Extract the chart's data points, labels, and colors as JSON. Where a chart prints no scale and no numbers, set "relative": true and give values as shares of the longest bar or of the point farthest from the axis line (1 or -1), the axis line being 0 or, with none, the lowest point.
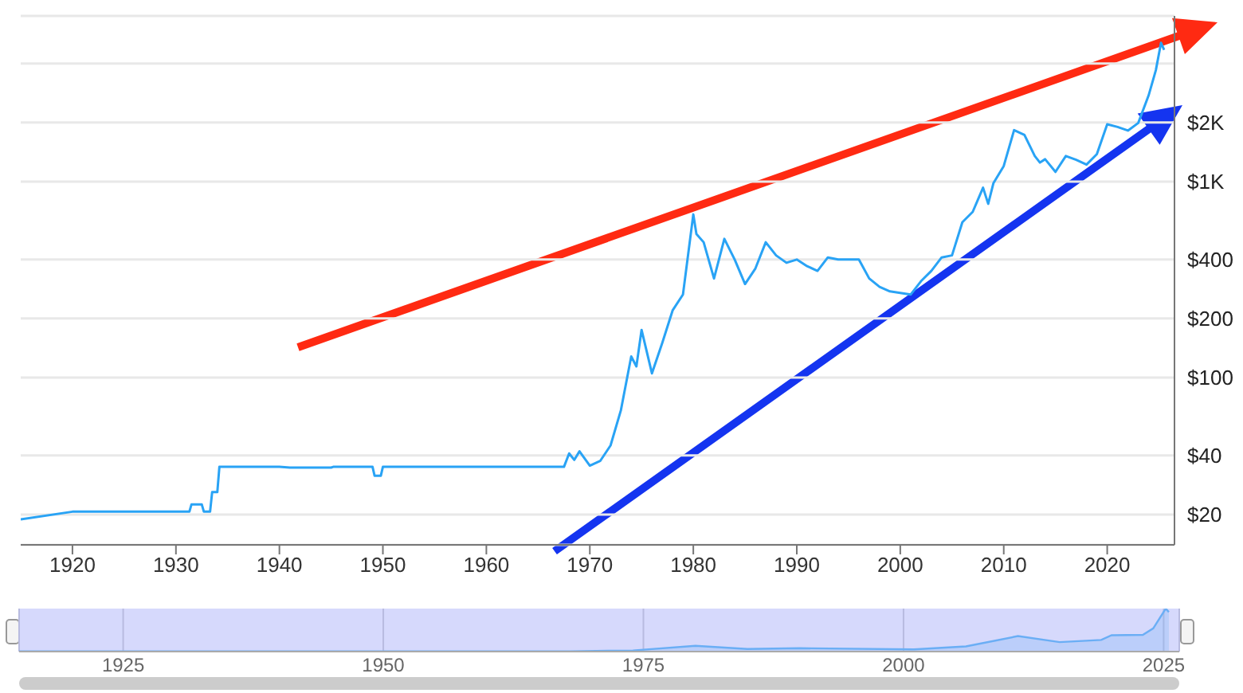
{
  "chart_data": [
    {
      "type": "line",
      "color": "#29a3f5",
      "log": true,
      "grid": "y",
      "xlim": [
        1915,
        2026.5
      ],
      "xticks": [
        1920,
        1930,
        1940,
        1950,
        1960,
        1970,
        1980,
        1990,
        2000,
        2010,
        2020
      ],
      "ylim": [
        14,
        7000
      ],
      "yticks": [
        {
          "value": 20,
          "label": "$20"
        },
        {
          "value": 40,
          "label": "$40"
        },
        {
          "value": 100,
          "label": "$100"
        },
        {
          "value": 200,
          "label": "$200"
        },
        {
          "value": 400,
          "label": "$400"
        },
        {
          "value": 1000,
          "label": "$1K"
        },
        {
          "value": 2000,
          "label": "$2K"
        },
        {
          "value": 4000,
          "label": null
        }
      ],
      "x": [
        1915,
        1920,
        1931.3,
        1931.5,
        1932.5,
        1932.7,
        1933.3,
        1933.5,
        1934,
        1934.2,
        1940,
        1941,
        1945,
        1945.2,
        1949,
        1949.2,
        1949.8,
        1950,
        1967.5,
        1968,
        1968.5,
        1969,
        1970,
        1971,
        1972,
        1973,
        1974,
        1974.5,
        1975,
        1976,
        1977,
        1978,
        1979,
        1980,
        1980.3,
        1981,
        1982,
        1983,
        1984,
        1985,
        1986,
        1987,
        1988,
        1989,
        1990,
        1991,
        1992,
        1993,
        1994,
        1996,
        1997,
        1998,
        1999,
        2001,
        2002,
        2003,
        2004,
        2005,
        2006,
        2007,
        2008,
        2008.5,
        2009,
        2010,
        2011,
        2012,
        2013,
        2013.5,
        2014,
        2015,
        2016,
        2017,
        2018,
        2019,
        2020,
        2021,
        2022,
        2023,
        2024,
        2024.7,
        2025.2,
        2025.5
      ],
      "values": [
        18.9,
        20.67,
        20.67,
        22.5,
        22.5,
        20.67,
        20.67,
        26,
        26,
        35,
        35,
        34.7,
        34.7,
        35,
        35,
        31.5,
        31.5,
        35,
        35,
        41,
        38,
        42,
        35.5,
        37.5,
        45,
        68,
        128,
        114,
        175,
        105,
        150,
        220,
        265,
        680,
        540,
        490,
        320,
        510,
        400,
        300,
        360,
        490,
        420,
        385,
        400,
        370,
        350,
        410,
        400,
        400,
        320,
        290,
        275,
        265,
        310,
        350,
        410,
        420,
        620,
        700,
        930,
        770,
        980,
        1200,
        1830,
        1730,
        1350,
        1250,
        1300,
        1120,
        1350,
        1290,
        1220,
        1380,
        1960,
        1900,
        1820,
        1990,
        2750,
        3700,
        5100,
        4700
      ]
    },
    {
      "type": "area",
      "color": "#6aaef5",
      "relative": true,
      "grid": "x",
      "tick_labels": "x",
      "xlim": [
        1915,
        2026.5
      ],
      "xticks": [
        1925,
        1950,
        1975,
        2000,
        2025
      ],
      "x": [
        1915,
        1934,
        1968,
        1974,
        1980,
        1985,
        1990,
        2001,
        2006,
        2011,
        2015,
        2019,
        2020,
        2023,
        2024,
        2025.2,
        2025.5
      ],
      "values": [
        0.004,
        0.007,
        0.007,
        0.025,
        0.133,
        0.06,
        0.078,
        0.052,
        0.12,
        0.36,
        0.22,
        0.27,
        0.38,
        0.39,
        0.54,
        1,
        0.92
      ]
    }
  ]
}
